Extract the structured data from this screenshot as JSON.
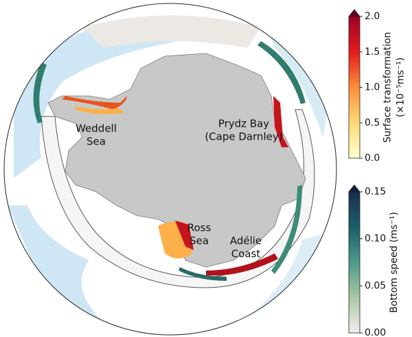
{
  "map": {
    "regions": [
      {
        "lines": [
          "Weddell",
          "Sea"
        ]
      },
      {
        "lines": [
          "Prydz Bay",
          "(Cape Darnley)"
        ]
      },
      {
        "lines": [
          "Ross",
          "Sea"
        ]
      },
      {
        "lines": [
          "Adélie",
          "Coast"
        ]
      }
    ],
    "colorbars": [
      {
        "label_lines": [
          "Surface transformation",
          "(×10⁻⁵ms⁻¹)"
        ],
        "ylim": [
          0,
          2
        ],
        "yticks": [
          {
            "value": 0,
            "label": "0.0"
          },
          {
            "value": 0.5,
            "label": "0.5"
          },
          {
            "value": 1,
            "label": "1.0"
          },
          {
            "value": 1.5,
            "label": "1.5"
          },
          {
            "value": 2,
            "label": "2.0"
          }
        ],
        "colors": [
          "#ffffcc",
          "#fed976",
          "#fd8d3c",
          "#e31a1c",
          "#9e0126"
        ],
        "extend_color": "#67001f"
      },
      {
        "label_lines": [
          "Bottom speed (ms⁻¹)"
        ],
        "ylim": [
          0,
          0.15
        ],
        "yticks": [
          {
            "value": 0,
            "label": "0.00"
          },
          {
            "value": 0.05,
            "label": "0.05"
          },
          {
            "value": 0.1,
            "label": "0.10"
          },
          0.15
        ],
        "colors": [
          "#f1eeeb",
          "#a9c7a4",
          "#4d9a8a",
          "#1d5e6b",
          "#1a2c4e"
        ],
        "extend_color": "#13203a"
      }
    ]
  }
}
